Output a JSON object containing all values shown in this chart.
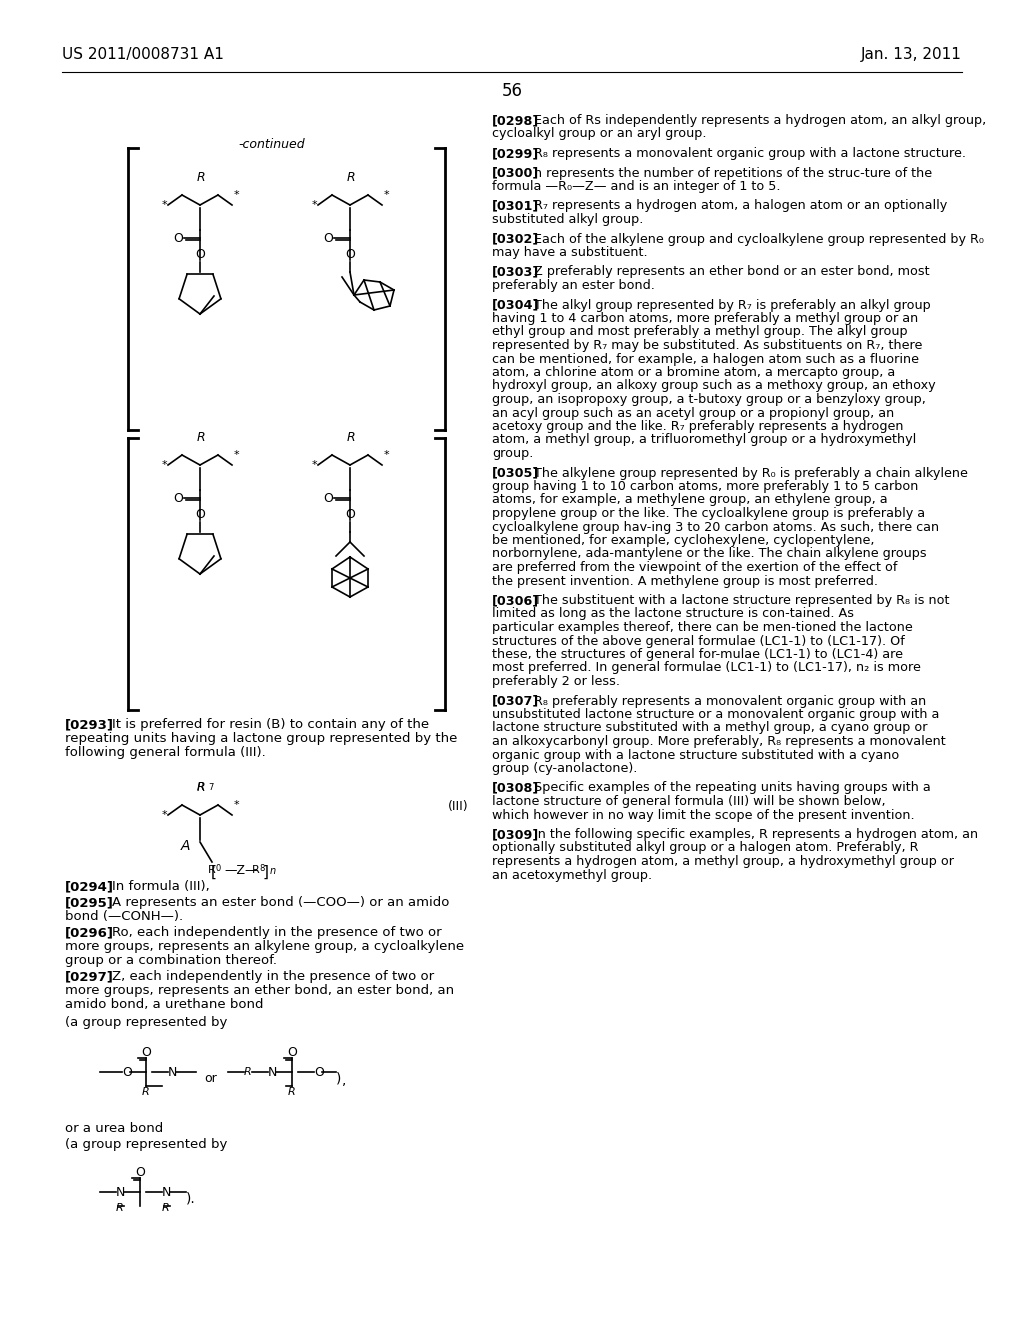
{
  "bg_color": "#ffffff",
  "header_left": "US 2011/0008731 A1",
  "header_right": "Jan. 13, 2011",
  "page_number": "56",
  "body_font_size": 9.5,
  "right_col_paragraphs": [
    {
      "tag": "[0298]",
      "text": "Each of Rs independently represents a hydrogen atom, an alkyl group, cycloalkyl group or an aryl group."
    },
    {
      "tag": "[0299]",
      "text": "R₈ represents a monovalent organic group with a lactone structure."
    },
    {
      "tag": "[0300]",
      "text": "n represents the number of repetitions of the struc-ture of the formula —R₀—Z— and is an integer of 1 to 5."
    },
    {
      "tag": "[0301]",
      "text": "R₇ represents a hydrogen atom, a halogen atom or an optionally substituted alkyl group."
    },
    {
      "tag": "[0302]",
      "text": "Each of the alkylene group and cycloalkylene group represented by R₀ may have a substituent."
    },
    {
      "tag": "[0303]",
      "text": "Z preferably represents an ether bond or an ester bond, most preferably an ester bond."
    },
    {
      "tag": "[0304]",
      "text": "The alkyl group represented by R₇ is preferably an alkyl group having 1 to 4 carbon atoms, more preferably a methyl group or an ethyl group and most preferably a methyl group. The alkyl group represented by R₇ may be substituted. As substituents on R₇, there can be mentioned, for example, a halogen atom such as a fluorine atom, a chlorine atom or a bromine atom, a mercapto group, a hydroxyl group, an alkoxy group such as a methoxy group, an ethoxy group, an isopropoxy group, a t-butoxy group or a benzyloxy group, an acyl group such as an acetyl group or a propionyl group, an acetoxy group and the like. R₇ preferably represents a hydrogen atom, a methyl group, a trifluoromethyl group or a hydroxymethyl group."
    },
    {
      "tag": "[0305]",
      "text": "The alkylene group represented by R₀ is preferably a chain alkylene group having 1 to 10 carbon atoms, more preferably 1 to 5 carbon atoms, for example, a methylene group, an ethylene group, a propylene group or the like. The cycloalkylene group is preferably a cycloalkylene group hav-ing 3 to 20 carbon atoms. As such, there can be mentioned, for example, cyclohexylene, cyclopentylene, norbornylene, ada-mantylene or the like. The chain alkylene groups are preferred from the viewpoint of the exertion of the effect of the present invention. A methylene group is most preferred."
    },
    {
      "tag": "[0306]",
      "text": "The substituent with a lactone structure represented by R₈ is not limited as long as the lactone structure is con-tained. As particular examples thereof, there can be men-tioned the lactone structures of the above general formulae (LC1-1) to (LC1-17). Of these, the structures of general for-mulae (LC1-1) to (LC1-4) are most preferred. In general formulae (LC1-1) to (LC1-17), n₂ is more preferably 2 or less."
    },
    {
      "tag": "[0307]",
      "text": "R₈ preferably represents a monovalent organic group with an unsubstituted lactone structure or a monovalent organic group with a lactone structure substituted with a methyl group, a cyano group or an alkoxycarbonyl group. More preferably, R₈ represents a monovalent organic group with a lactone structure substituted with a cyano group (cy-anolactone)."
    },
    {
      "tag": "[0308]",
      "text": "Specific examples of the repeating units having groups with a lactone structure of general formula (III) will be shown below, which however in no way limit the scope of the present invention."
    },
    {
      "tag": "[0309]",
      "text": "In the following specific examples, R represents a hydrogen atom, an optionally substituted alkyl group or a halogen atom. Preferably, R represents a hydrogen atom, a methyl group, a hydroxymethyl group or an acetoxymethyl group."
    }
  ]
}
